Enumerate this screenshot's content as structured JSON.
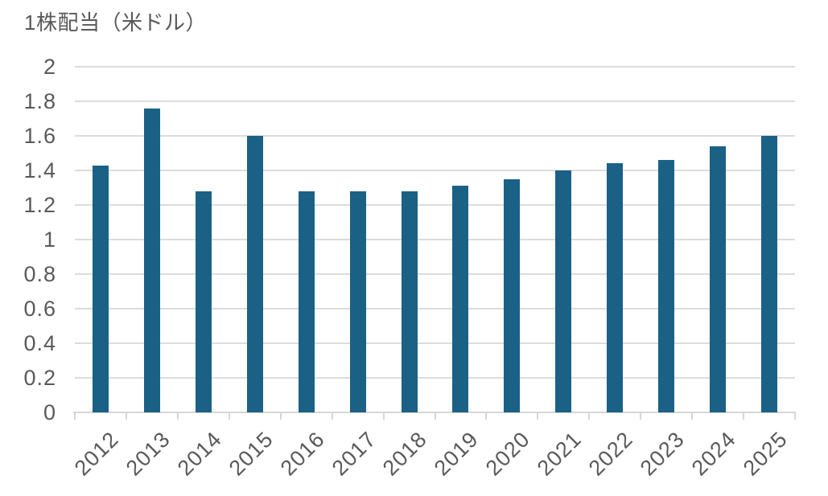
{
  "chart_data": {
    "type": "bar",
    "title": "1株配当（米ドル）",
    "categories": [
      "2012",
      "2013",
      "2014",
      "2015",
      "2016",
      "2017",
      "2018",
      "2019",
      "2020",
      "2021",
      "2022",
      "2023",
      "2024",
      "2025"
    ],
    "values": [
      1.43,
      1.76,
      1.28,
      1.6,
      1.28,
      1.28,
      1.28,
      1.31,
      1.35,
      1.4,
      1.44,
      1.46,
      1.54,
      1.6
    ],
    "xlabel": "",
    "ylabel": "",
    "ylim": [
      0,
      2
    ],
    "ytick_values": [
      2,
      1.8,
      1.6,
      1.4,
      1.2,
      1,
      0.8,
      0.6,
      0.4,
      0.2,
      0
    ],
    "ytick_labels": [
      "2",
      "1.8",
      "1.6",
      "1.4",
      "1.2",
      "1",
      "0.8",
      "0.6",
      "0.4",
      "0.2",
      "0"
    ],
    "grid": true,
    "legend": "none",
    "colors": {
      "bar": "#1A6185",
      "grid": "#DCDCDC",
      "axis": "#D6D6D6",
      "text": "#595959",
      "background": "#FFFFFF"
    }
  }
}
